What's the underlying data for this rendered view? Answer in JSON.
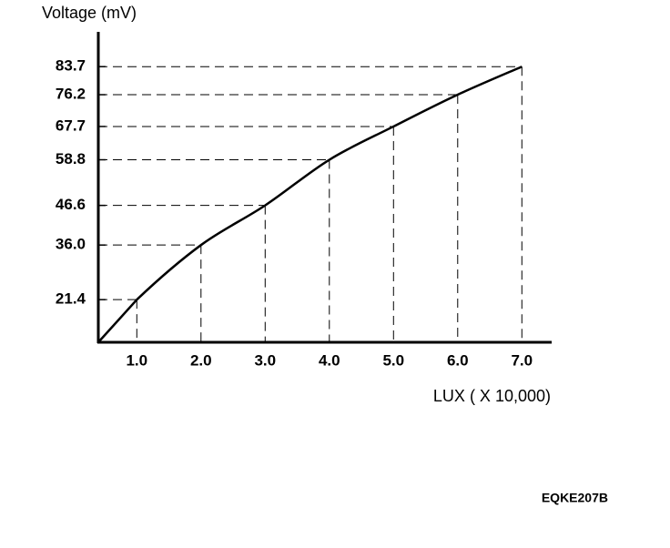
{
  "chart_data": {
    "type": "line",
    "y_label": "Voltage (mV)",
    "x_label": "LUX ( X 10,000)",
    "annotation": "EQKE207B",
    "x": [
      1,
      2,
      3,
      4,
      5,
      6,
      7
    ],
    "values": [
      21.4,
      36.0,
      46.6,
      58.8,
      67.7,
      76.2,
      83.7
    ],
    "color": "#000000",
    "xlim": [
      0.4,
      7.45
    ],
    "ylim": [
      10,
      93
    ],
    "xticks": [
      {
        "value": 1,
        "label": "1.0"
      },
      {
        "value": 2,
        "label": "2.0"
      },
      {
        "value": 3,
        "label": "3.0"
      },
      {
        "value": 4,
        "label": "4.0"
      },
      {
        "value": 5,
        "label": "5.0"
      },
      {
        "value": 6,
        "label": "6.0"
      },
      {
        "value": 7,
        "label": "7.0"
      }
    ],
    "yticks": [
      {
        "value": 21.4,
        "label": "21.4"
      },
      {
        "value": 36.0,
        "label": "36.0"
      },
      46.6,
      58.8,
      67.7,
      76.2,
      83.7
    ]
  }
}
